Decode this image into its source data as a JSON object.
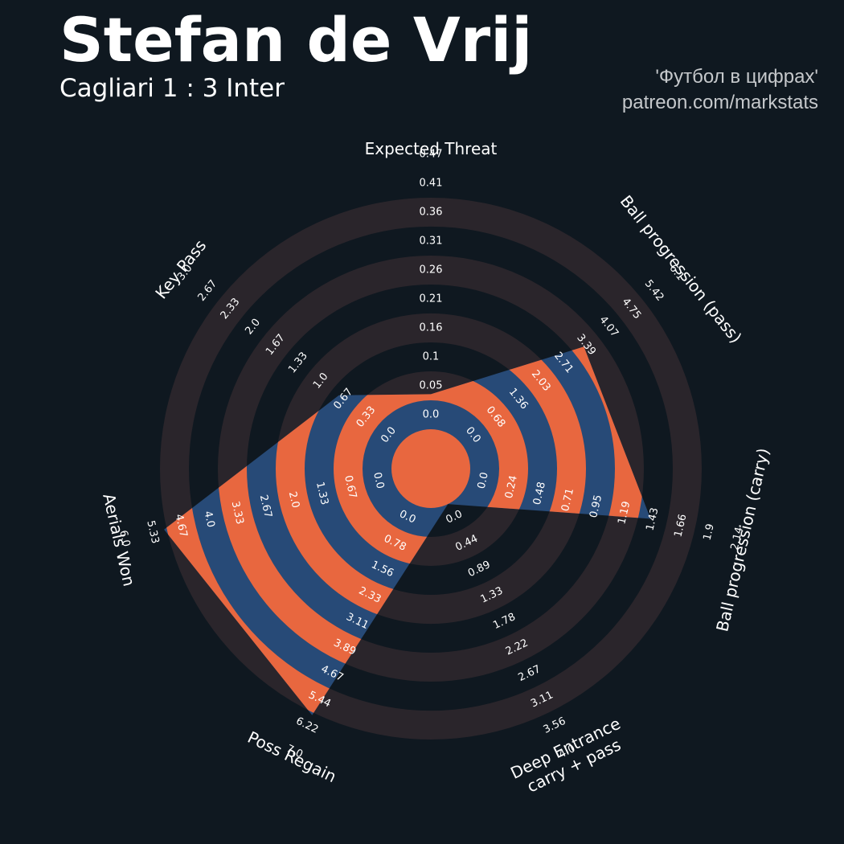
{
  "header": {
    "player_name": "Stefan de Vrij",
    "match": "Cagliari 1 : 3 Inter",
    "credit_line1": "'Футбол в цифрах'",
    "credit_line2": "patreon.com/markstats"
  },
  "colors": {
    "background": "#0f1820",
    "ring": "#2a252b",
    "fill": "#274a77",
    "accent": "#e8673f",
    "text": "#ffffff"
  },
  "chart_data": {
    "type": "radar",
    "params": [
      {
        "label": "Expected Threat",
        "value": 0.07,
        "min": 0.0,
        "max": 0.52,
        "ticks": [
          "0.0",
          "0.05",
          "0.1",
          "0.16",
          "0.21",
          "0.26",
          "0.31",
          "0.36",
          "0.41",
          "0.47"
        ]
      },
      {
        "label": "Ball progression (pass)",
        "value": 4.07,
        "min": 0.0,
        "max": 6.78,
        "ticks": [
          "0.0",
          "0.68",
          "1.36",
          "2.03",
          "2.71",
          "3.39",
          "4.07",
          "4.75",
          "5.42",
          "6.1"
        ]
      },
      {
        "label": "Ball progression (carry)",
        "value": 1.7,
        "min": 0.0,
        "max": 2.38,
        "ticks": [
          "0.0",
          "0.24",
          "0.48",
          "0.71",
          "0.95",
          "1.19",
          "1.43",
          "1.66",
          "1.9",
          "2.14"
        ]
      },
      {
        "label": "Deep Entrance\ncarry + pass",
        "value": 0.0,
        "min": 0.0,
        "max": 4.44,
        "ticks": [
          "0.0",
          "0.44",
          "0.89",
          "1.33",
          "1.78",
          "2.22",
          "2.67",
          "3.11",
          "3.56",
          "4.0"
        ]
      },
      {
        "label": "Poss Regain",
        "value": 7.0,
        "min": 0.0,
        "max": 7.78,
        "ticks": [
          "0.0",
          "0.78",
          "1.56",
          "2.33",
          "3.11",
          "3.89",
          "4.67",
          "5.44",
          "6.22",
          "7.0"
        ]
      },
      {
        "label": "Aerials Won",
        "value": 6.0,
        "min": 0.0,
        "max": 6.67,
        "ticks": [
          "0.0",
          "0.67",
          "1.33",
          "2.0",
          "2.67",
          "3.33",
          "4.0",
          "4.67",
          "5.33",
          "6.0"
        ]
      },
      {
        "label": "Key Pass",
        "value": 1.0,
        "min": 0.0,
        "max": 3.33,
        "ticks": [
          "0.0",
          "0.33",
          "0.67",
          "1.0",
          "1.33",
          "1.67",
          "2.0",
          "2.33",
          "2.67",
          "3.0"
        ]
      }
    ]
  }
}
